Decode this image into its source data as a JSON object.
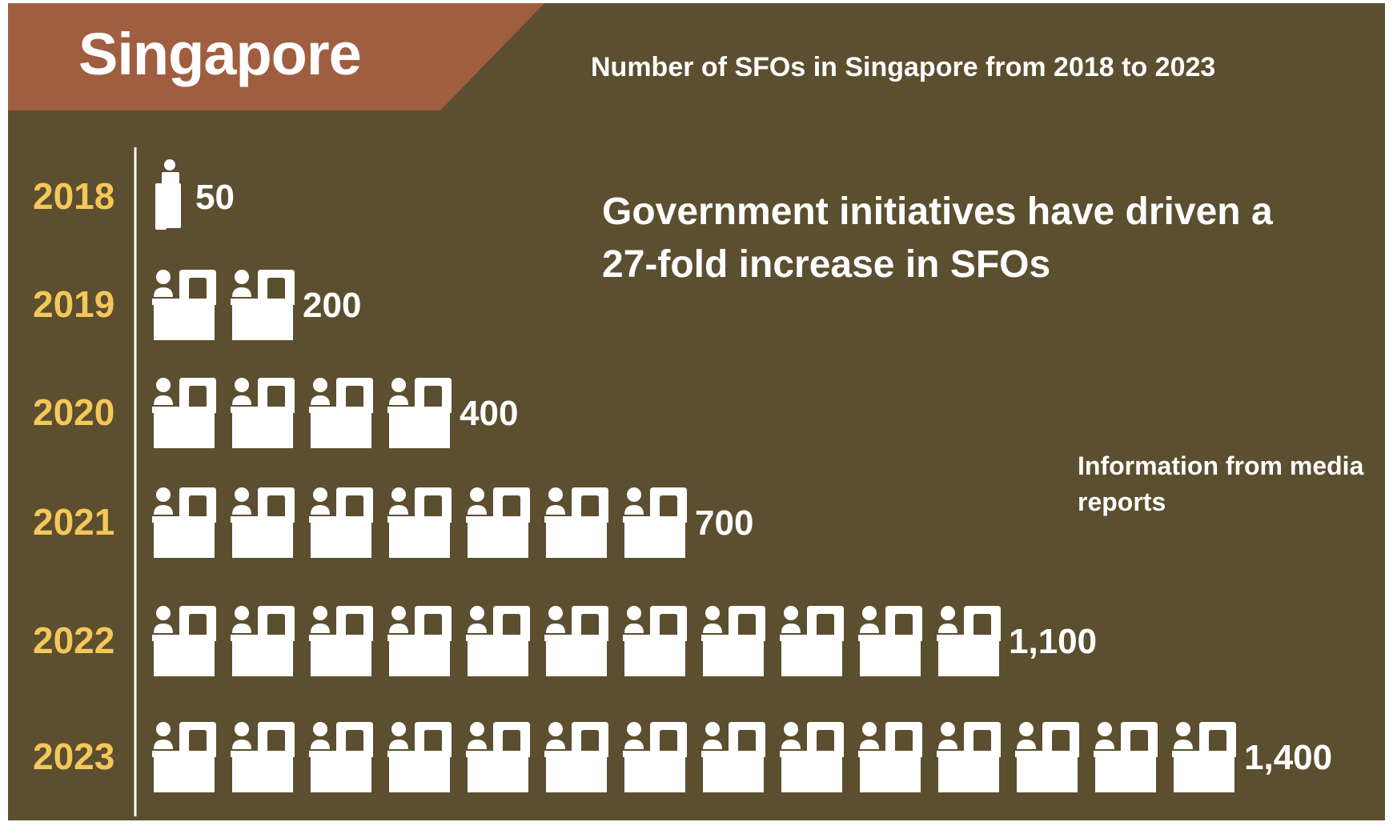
{
  "header": {
    "banner_title": "Singapore",
    "subtitle": "Number of SFOs in Singapore from 2018 to 2023"
  },
  "annotation": {
    "headline": "Government initiatives have driven a 27-fold increase in SFOs",
    "source": "Information from media reports"
  },
  "colors": {
    "background": "#5b4f30",
    "banner": "#a05e41",
    "year_label": "#f5c75a",
    "icon": "#ffffff",
    "text": "#ffffff"
  },
  "chart_data": {
    "type": "bar",
    "orientation": "horizontal",
    "encoding": "pictogram",
    "icon": "person-at-desk-icon",
    "units_per_icon": 100,
    "categories": [
      "2018",
      "2019",
      "2020",
      "2021",
      "2022",
      "2023"
    ],
    "values": [
      50,
      200,
      400,
      700,
      1100,
      1400
    ],
    "value_labels": [
      "50",
      "200",
      "400",
      "700",
      "1,100",
      "1,400"
    ],
    "title": "Number of SFOs in Singapore from 2018 to 2023"
  }
}
